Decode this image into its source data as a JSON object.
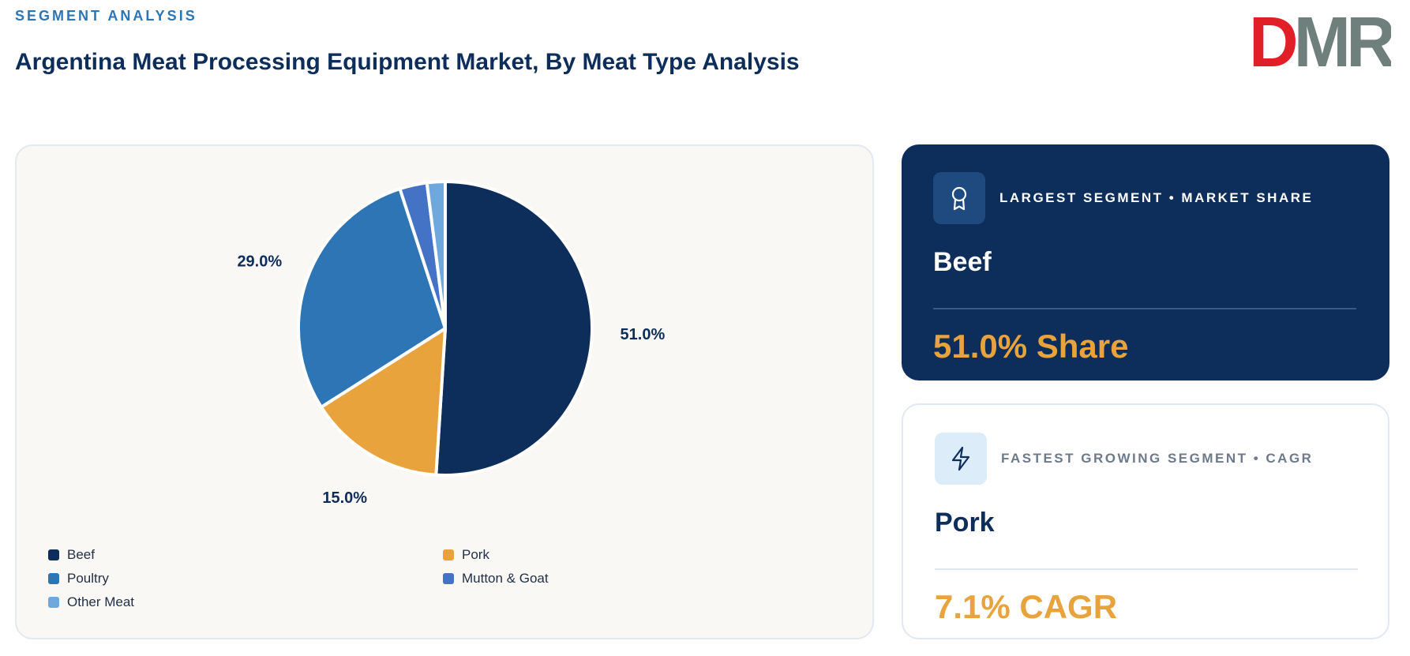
{
  "header": {
    "eyebrow": "SEGMENT ANALYSIS",
    "title": "Argentina Meat Processing Equipment Market, By Meat Type Analysis"
  },
  "logo": {
    "text": "DMR",
    "colors": {
      "d": "#e01f26",
      "mr": "#6f7f7c"
    }
  },
  "chart_data": {
    "type": "pie",
    "title": "",
    "categories": [
      "Beef",
      "Pork",
      "Poultry",
      "Mutton & Goat",
      "Other Meat"
    ],
    "values": [
      51.0,
      15.0,
      29.0,
      3.0,
      2.0
    ],
    "labels": [
      "51.0%",
      "15.0%",
      "29.0%",
      "3.0%",
      "2.0%"
    ],
    "colors": [
      "#0d2d5a",
      "#e8a33d",
      "#2e75b6",
      "#4472c4",
      "#6fa8dc"
    ],
    "start": "12 o'clock",
    "direction": "clockwise",
    "legend_position": "bottom"
  },
  "legend": [
    {
      "label": "Beef",
      "color": "#0d2d5a"
    },
    {
      "label": "Pork",
      "color": "#e8a33d"
    },
    {
      "label": "Poultry",
      "color": "#2e75b6"
    },
    {
      "label": "Mutton & Goat",
      "color": "#4472c4"
    },
    {
      "label": "Other Meat",
      "color": "#6fa8dc"
    }
  ],
  "largest": {
    "icon": "award-ribbon-icon",
    "caption": "LARGEST SEGMENT • MARKET SHARE",
    "name": "Beef",
    "value": "51.0% Share"
  },
  "fastest": {
    "icon": "lightning-bolt-icon",
    "caption": "FASTEST GROWING SEGMENT • CAGR",
    "name": "Pork",
    "value": "7.1% CAGR"
  }
}
